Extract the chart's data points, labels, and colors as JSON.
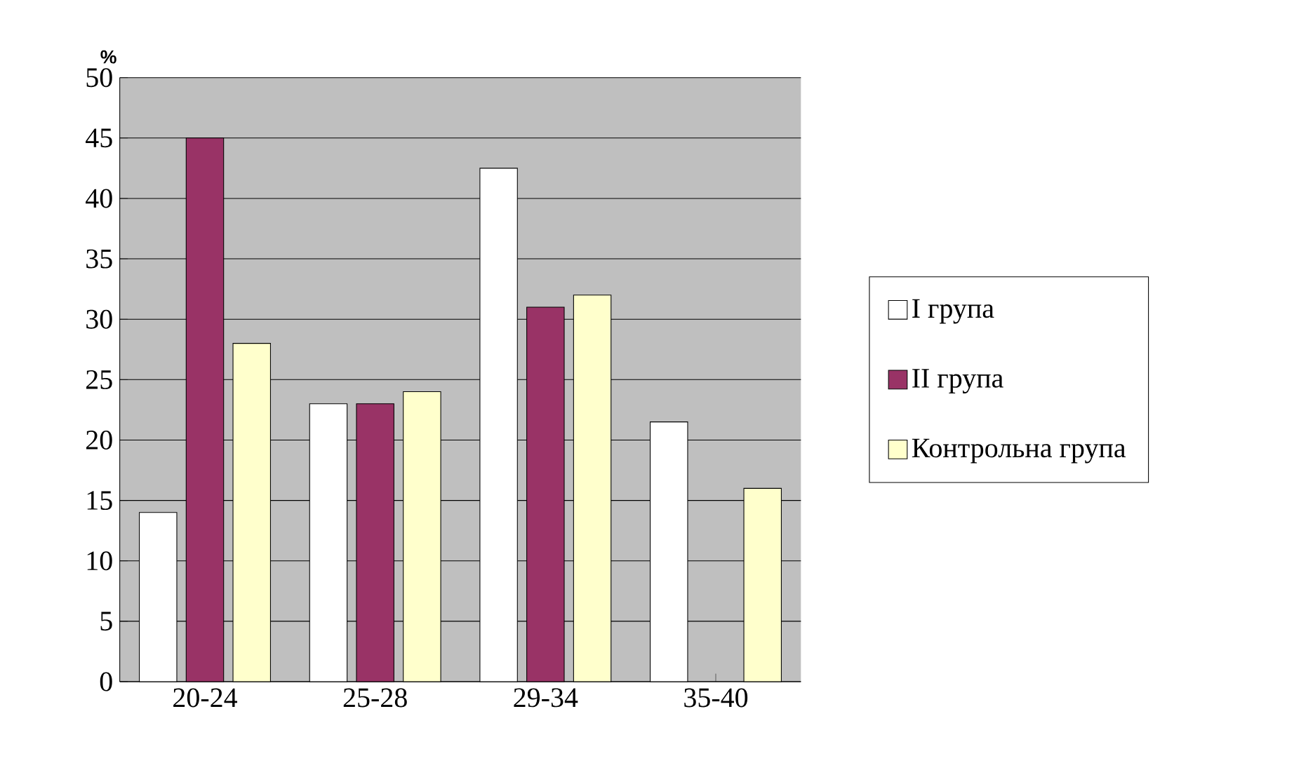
{
  "chart_data": {
    "type": "bar",
    "ylabel": "%",
    "categories": [
      "20-24",
      "25-28",
      "29-34",
      "35-40"
    ],
    "series": [
      {
        "name": "I група",
        "color": "#ffffff",
        "values": [
          14,
          23,
          42.5,
          21.5
        ]
      },
      {
        "name": "II група",
        "color": "#993366",
        "values": [
          45,
          23,
          31,
          null
        ]
      },
      {
        "name": "Контрольна група",
        "color": "#ffffcc",
        "values": [
          28,
          24,
          32,
          16
        ]
      }
    ],
    "ylim": [
      0,
      50
    ],
    "yticks": [
      0,
      5,
      10,
      15,
      20,
      25,
      30,
      35,
      40,
      45,
      50
    ],
    "grid": "y",
    "legend": "right"
  }
}
